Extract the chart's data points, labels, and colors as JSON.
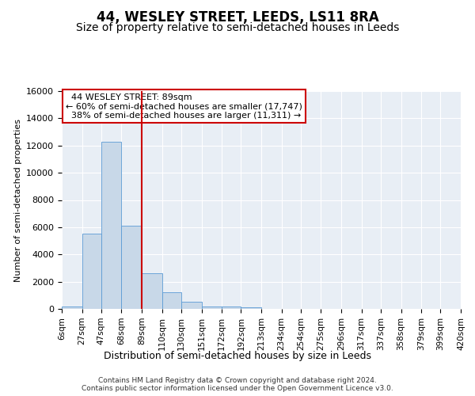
{
  "title": "44, WESLEY STREET, LEEDS, LS11 8RA",
  "subtitle": "Size of property relative to semi-detached houses in Leeds",
  "xlabel": "Distribution of semi-detached houses by size in Leeds",
  "ylabel": "Number of semi-detached properties",
  "property_label": "44 WESLEY STREET: 89sqm",
  "pct_smaller": 60,
  "pct_larger": 38,
  "n_smaller": 17747,
  "n_larger": 11311,
  "footer_line1": "Contains HM Land Registry data © Crown copyright and database right 2024.",
  "footer_line2": "Contains public sector information licensed under the Open Government Licence v3.0.",
  "bin_labels": [
    "6sqm",
    "27sqm",
    "47sqm",
    "68sqm",
    "89sqm",
    "110sqm",
    "130sqm",
    "151sqm",
    "172sqm",
    "192sqm",
    "213sqm",
    "234sqm",
    "254sqm",
    "275sqm",
    "296sqm",
    "317sqm",
    "337sqm",
    "358sqm",
    "379sqm",
    "399sqm",
    "420sqm"
  ],
  "bin_edges": [
    6,
    27,
    47,
    68,
    89,
    110,
    130,
    151,
    172,
    192,
    213,
    234,
    254,
    275,
    296,
    317,
    337,
    358,
    379,
    399,
    420
  ],
  "bar_heights": [
    200,
    5500,
    12300,
    6100,
    2600,
    1200,
    500,
    200,
    150,
    100,
    0,
    0,
    0,
    0,
    0,
    0,
    0,
    0,
    0,
    0
  ],
  "bar_color": "#c8d8e8",
  "bar_edge_color": "#5b9bd5",
  "vline_color": "#cc0000",
  "vline_x": 89,
  "ylim": [
    0,
    16000
  ],
  "yticks": [
    0,
    2000,
    4000,
    6000,
    8000,
    10000,
    12000,
    14000,
    16000
  ],
  "annotation_box_edge_color": "#cc0000",
  "bg_color": "#e8eef5",
  "grid_color": "#ffffff",
  "title_fontsize": 12,
  "subtitle_fontsize": 10
}
